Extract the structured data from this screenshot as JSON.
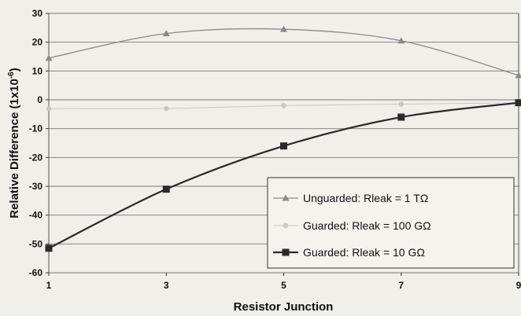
{
  "chart_data": {
    "type": "line",
    "xlabel": "Resistor Junction",
    "ylabel_main": "Relative Difference (1x10",
    "ylabel_exp": "-6",
    "ylabel_close": ")",
    "xlim": [
      1,
      9
    ],
    "ylim": [
      -60,
      30
    ],
    "xticks": [
      1,
      3,
      5,
      7,
      9
    ],
    "yticks": [
      30,
      20,
      10,
      0,
      -10,
      -20,
      -30,
      -40,
      -50,
      -60
    ],
    "grid": true,
    "legend_position": "bottom-right",
    "series": [
      {
        "name": "Unguarded: Rleak = 1 TΩ",
        "marker": "triangle",
        "color": "#8a8a8a",
        "x": [
          1,
          3,
          5,
          7,
          9
        ],
        "y": [
          14.5,
          23,
          24.5,
          20.5,
          8.5
        ]
      },
      {
        "name": "Guarded: Rleak = 100 GΩ",
        "marker": "circle",
        "color": "#c8c8c8",
        "x": [
          1,
          3,
          5,
          7,
          9
        ],
        "y": [
          -3,
          -3,
          -2,
          -1.5,
          -1
        ]
      },
      {
        "name": "Guarded: Rleak = 10 GΩ",
        "marker": "square",
        "color": "#2a2a2a",
        "x": [
          1,
          3,
          5,
          7,
          9
        ],
        "y": [
          -51.5,
          -31,
          -16,
          -6,
          -1
        ]
      }
    ]
  }
}
